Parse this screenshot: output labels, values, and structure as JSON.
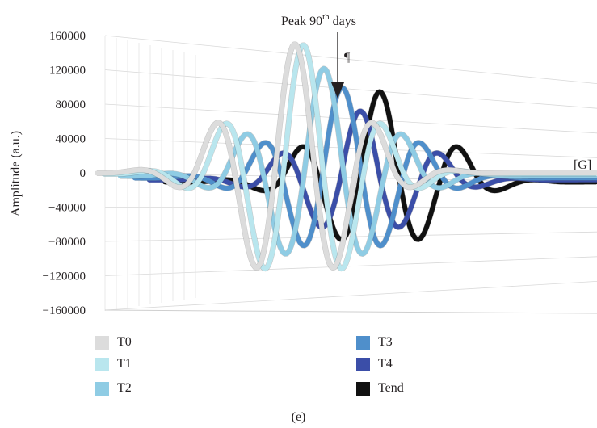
{
  "chart_data": {
    "type": "line",
    "title": "",
    "ylabel": "Amplitude (a.u.)",
    "ylim": [
      -160000,
      160000
    ],
    "yticks": [
      "160000",
      "120000",
      "80000",
      "40000",
      "0",
      "-40000",
      "-80000",
      "-120000",
      "-160000"
    ],
    "series": [
      {
        "name": "T0",
        "color": "#dcdcdc",
        "peak": 150000,
        "trough": -140000
      },
      {
        "name": "T1",
        "color": "#b9e6ee",
        "peak": 150000,
        "trough": -140000
      },
      {
        "name": "T2",
        "color": "#8fcce4",
        "peak": 125000,
        "trough": -115000
      },
      {
        "name": "T3",
        "color": "#4f8fcb",
        "peak": 105000,
        "trough": -100000
      },
      {
        "name": "T4",
        "color": "#3b4ea8",
        "peak": 80000,
        "trough": -70000
      },
      {
        "name": "Tend",
        "color": "#111111",
        "peak": 105000,
        "trough": -85000
      }
    ],
    "annotations": {
      "peak_prefix": "Peak 90",
      "peak_sup": "th",
      "peak_suffix": " days",
      "pilcrow": "¶",
      "gate": "[G]"
    },
    "grid": true,
    "legend_position": "bottom"
  },
  "caption": "(e)"
}
